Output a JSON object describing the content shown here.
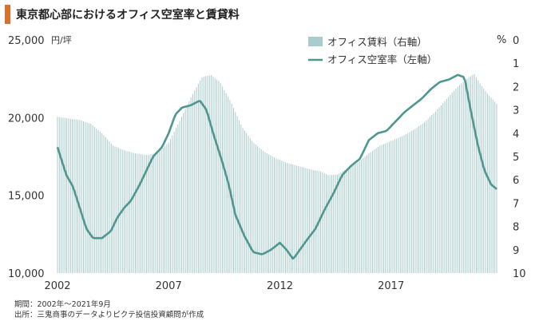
{
  "title": "東京都心部におけるオフィス空室率と賃貸料",
  "colors": {
    "accent": "#d9702b",
    "bars": "#a9cccc",
    "line": "#4d9790"
  },
  "notes": {
    "period": "期間：2002年～2021年9月",
    "source": "出所：三鬼商事のデータよりピクテ投信投資顧問が作成"
  },
  "chart_data": {
    "type": "bar+line",
    "x_ticks": [
      "2002",
      "2007",
      "2012",
      "2017"
    ],
    "left_axis": {
      "unit": "円/坪",
      "ticks": [
        "25,000",
        "20,000",
        "15,000",
        "10,000"
      ],
      "range": [
        10000,
        25000
      ]
    },
    "right_axis": {
      "unit": "%",
      "ticks": [
        "0",
        "1",
        "2",
        "3",
        "4",
        "5",
        "6",
        "7",
        "8",
        "9",
        "10"
      ],
      "range": [
        10,
        0
      ],
      "inverted": true
    },
    "series": [
      {
        "name": "オフィス賃料（右軸）",
        "kind": "bar",
        "comment": "monthly average rent, yen per tsubo, left-axis scale",
        "points": [
          [
            2002.0,
            20050
          ],
          [
            2002.5,
            19950
          ],
          [
            2003.0,
            19850
          ],
          [
            2003.5,
            19600
          ],
          [
            2004.0,
            19000
          ],
          [
            2004.5,
            18200
          ],
          [
            2005.0,
            17900
          ],
          [
            2005.5,
            17700
          ],
          [
            2006.0,
            17600
          ],
          [
            2006.5,
            17700
          ],
          [
            2007.0,
            18400
          ],
          [
            2007.5,
            19800
          ],
          [
            2008.0,
            21300
          ],
          [
            2008.5,
            22600
          ],
          [
            2008.9,
            22750
          ],
          [
            2009.3,
            22300
          ],
          [
            2009.8,
            21000
          ],
          [
            2010.3,
            19400
          ],
          [
            2010.8,
            18400
          ],
          [
            2011.3,
            17800
          ],
          [
            2011.8,
            17400
          ],
          [
            2012.3,
            17100
          ],
          [
            2012.8,
            16900
          ],
          [
            2013.3,
            16700
          ],
          [
            2013.8,
            16550
          ],
          [
            2014.2,
            16300
          ],
          [
            2014.6,
            16350
          ],
          [
            2015.0,
            16700
          ],
          [
            2015.5,
            17100
          ],
          [
            2016.0,
            17700
          ],
          [
            2016.5,
            18200
          ],
          [
            2017.0,
            18500
          ],
          [
            2017.5,
            18800
          ],
          [
            2018.0,
            19200
          ],
          [
            2018.5,
            19700
          ],
          [
            2019.0,
            20400
          ],
          [
            2019.5,
            21200
          ],
          [
            2020.0,
            22000
          ],
          [
            2020.5,
            22600
          ],
          [
            2020.75,
            22800
          ],
          [
            2021.0,
            22200
          ],
          [
            2021.3,
            21600
          ],
          [
            2021.75,
            20900
          ]
        ]
      },
      {
        "name": "オフィス空室率（左軸）",
        "kind": "line",
        "comment": "vacancy rate in %, right-axis scale (0 at top, 10 at bottom)",
        "points": [
          [
            2002.0,
            4.6
          ],
          [
            2002.2,
            5.2
          ],
          [
            2002.4,
            5.8
          ],
          [
            2002.7,
            6.3
          ],
          [
            2003.0,
            7.2
          ],
          [
            2003.3,
            8.1
          ],
          [
            2003.6,
            8.5
          ],
          [
            2004.0,
            8.5
          ],
          [
            2004.4,
            8.2
          ],
          [
            2004.7,
            7.6
          ],
          [
            2005.0,
            7.2
          ],
          [
            2005.3,
            6.9
          ],
          [
            2005.7,
            6.2
          ],
          [
            2006.0,
            5.6
          ],
          [
            2006.3,
            5.0
          ],
          [
            2006.7,
            4.6
          ],
          [
            2007.0,
            4.0
          ],
          [
            2007.3,
            3.2
          ],
          [
            2007.6,
            2.9
          ],
          [
            2008.0,
            2.8
          ],
          [
            2008.4,
            2.6
          ],
          [
            2008.7,
            3.0
          ],
          [
            2009.0,
            4.0
          ],
          [
            2009.4,
            5.2
          ],
          [
            2009.7,
            6.2
          ],
          [
            2010.0,
            7.5
          ],
          [
            2010.4,
            8.4
          ],
          [
            2010.8,
            9.1
          ],
          [
            2011.2,
            9.2
          ],
          [
            2011.6,
            9.0
          ],
          [
            2012.0,
            8.7
          ],
          [
            2012.3,
            9.0
          ],
          [
            2012.6,
            9.4
          ],
          [
            2012.9,
            9.0
          ],
          [
            2013.2,
            8.6
          ],
          [
            2013.6,
            8.1
          ],
          [
            2014.0,
            7.3
          ],
          [
            2014.4,
            6.6
          ],
          [
            2014.8,
            5.8
          ],
          [
            2015.2,
            5.4
          ],
          [
            2015.6,
            5.1
          ],
          [
            2016.0,
            4.3
          ],
          [
            2016.4,
            4.0
          ],
          [
            2016.8,
            3.9
          ],
          [
            2017.2,
            3.5
          ],
          [
            2017.6,
            3.1
          ],
          [
            2018.0,
            2.8
          ],
          [
            2018.4,
            2.5
          ],
          [
            2018.8,
            2.1
          ],
          [
            2019.2,
            1.8
          ],
          [
            2019.6,
            1.7
          ],
          [
            2020.0,
            1.5
          ],
          [
            2020.3,
            1.6
          ],
          [
            2020.6,
            3.1
          ],
          [
            2020.9,
            4.5
          ],
          [
            2021.2,
            5.6
          ],
          [
            2021.5,
            6.2
          ],
          [
            2021.75,
            6.4
          ]
        ]
      }
    ],
    "x_range": [
      2002,
      2021.75
    ],
    "grid": false,
    "legend": "top-right"
  }
}
